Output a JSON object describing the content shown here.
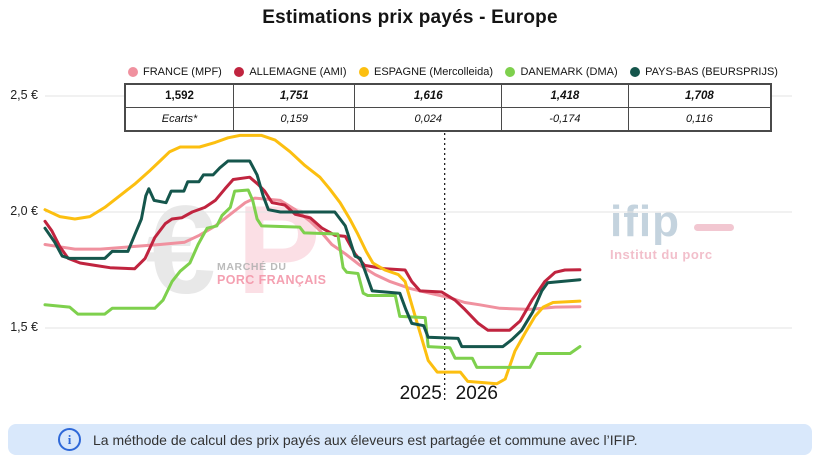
{
  "title": "Estimations prix payés - Europe",
  "table": {
    "rows": [
      [
        "1,592",
        "1,751",
        "1,616",
        "1,418",
        "1,708"
      ],
      [
        "Ecarts*",
        "0,159",
        "0,024",
        "-0,174",
        "0,116"
      ]
    ]
  },
  "watermarks": {
    "mpf_euro": "€",
    "mpf_p": "P",
    "mpf_line1": "MARCHÉ DU",
    "mpf_line2": "PORC FRANÇAIS",
    "ifip_name": "ifip",
    "ifip_sub": "Institut du porc"
  },
  "footer": {
    "info_text": "La méthode de calcul des prix payés aux éleveurs est partagée et commune avec l’IFIP."
  },
  "colors": {
    "grid": "#e3e3e3",
    "divider": "#222222",
    "banner_bg": "#d9e8fb",
    "banner_icon": "#2e68d8"
  },
  "chart_data": {
    "type": "line",
    "title": "Estimations prix payés - Europe",
    "ylabel": "€",
    "ylim": [
      1.2,
      2.55
    ],
    "grid": "horizontal",
    "legend_position": "top",
    "yticks": [
      {
        "label": "2,5 €",
        "value": 2.5
      },
      {
        "label": "2,0 €",
        "value": 2.0
      },
      {
        "label": "1,5 €",
        "value": 1.5
      }
    ],
    "x_axis": {
      "divider_x": 0.535,
      "labels": [
        {
          "text": "2025",
          "x": 0.503
        },
        {
          "text": "2026",
          "x": 0.578
        }
      ]
    },
    "series": [
      {
        "name": "FRANCE (MPF)",
        "color": "#f0919f",
        "current": 1.592,
        "ecart": null,
        "points": [
          [
            0.0,
            1.86
          ],
          [
            0.02,
            1.85
          ],
          [
            0.04,
            1.84
          ],
          [
            0.074,
            1.84
          ],
          [
            0.114,
            1.85
          ],
          [
            0.154,
            1.86
          ],
          [
            0.187,
            1.87
          ],
          [
            0.207,
            1.9
          ],
          [
            0.228,
            1.94
          ],
          [
            0.248,
            1.99
          ],
          [
            0.268,
            2.04
          ],
          [
            0.281,
            2.06
          ],
          [
            0.315,
            2.05
          ],
          [
            0.335,
            2.01
          ],
          [
            0.355,
            1.96
          ],
          [
            0.368,
            1.92
          ],
          [
            0.384,
            1.86
          ],
          [
            0.402,
            1.82
          ],
          [
            0.422,
            1.77
          ],
          [
            0.442,
            1.73
          ],
          [
            0.462,
            1.7
          ],
          [
            0.489,
            1.67
          ],
          [
            0.515,
            1.65
          ],
          [
            0.542,
            1.63
          ],
          [
            0.562,
            1.61
          ],
          [
            0.582,
            1.6
          ],
          [
            0.609,
            1.585
          ],
          [
            0.649,
            1.58
          ],
          [
            0.683,
            1.59
          ],
          [
            0.716,
            1.592
          ]
        ]
      },
      {
        "name": "ALLEMAGNE (AMI)",
        "color": "#c0243f",
        "current": 1.751,
        "ecart": 0.159,
        "points": [
          [
            0.0,
            1.96
          ],
          [
            0.009,
            1.92
          ],
          [
            0.02,
            1.85
          ],
          [
            0.031,
            1.8
          ],
          [
            0.047,
            1.78
          ],
          [
            0.067,
            1.77
          ],
          [
            0.087,
            1.76
          ],
          [
            0.12,
            1.755
          ],
          [
            0.134,
            1.8
          ],
          [
            0.147,
            1.89
          ],
          [
            0.161,
            1.95
          ],
          [
            0.17,
            1.97
          ],
          [
            0.183,
            1.975
          ],
          [
            0.197,
            2.0
          ],
          [
            0.214,
            2.02
          ],
          [
            0.228,
            2.05
          ],
          [
            0.241,
            2.1
          ],
          [
            0.252,
            2.14
          ],
          [
            0.274,
            2.15
          ],
          [
            0.285,
            2.12
          ],
          [
            0.294,
            2.09
          ],
          [
            0.304,
            2.04
          ],
          [
            0.321,
            2.03
          ],
          [
            0.335,
            1.99
          ],
          [
            0.355,
            1.975
          ],
          [
            0.371,
            1.93
          ],
          [
            0.388,
            1.9
          ],
          [
            0.402,
            1.895
          ],
          [
            0.415,
            1.82
          ],
          [
            0.428,
            1.77
          ],
          [
            0.455,
            1.755
          ],
          [
            0.482,
            1.75
          ],
          [
            0.491,
            1.7
          ],
          [
            0.502,
            1.66
          ],
          [
            0.531,
            1.655
          ],
          [
            0.549,
            1.62
          ],
          [
            0.562,
            1.58
          ],
          [
            0.58,
            1.52
          ],
          [
            0.593,
            1.49
          ],
          [
            0.622,
            1.49
          ],
          [
            0.636,
            1.53
          ],
          [
            0.652,
            1.62
          ],
          [
            0.669,
            1.7
          ],
          [
            0.683,
            1.74
          ],
          [
            0.696,
            1.75
          ],
          [
            0.716,
            1.751
          ]
        ]
      },
      {
        "name": "ESPAGNE (Mercolleida)",
        "color": "#fcbf10",
        "current": 1.616,
        "ecart": 0.024,
        "points": [
          [
            0.0,
            2.01
          ],
          [
            0.02,
            1.98
          ],
          [
            0.04,
            1.97
          ],
          [
            0.06,
            1.98
          ],
          [
            0.08,
            2.02
          ],
          [
            0.1,
            2.07
          ],
          [
            0.12,
            2.12
          ],
          [
            0.141,
            2.18
          ],
          [
            0.154,
            2.22
          ],
          [
            0.167,
            2.26
          ],
          [
            0.181,
            2.28
          ],
          [
            0.207,
            2.28
          ],
          [
            0.228,
            2.3
          ],
          [
            0.245,
            2.32
          ],
          [
            0.261,
            2.33
          ],
          [
            0.29,
            2.33
          ],
          [
            0.308,
            2.31
          ],
          [
            0.328,
            2.26
          ],
          [
            0.348,
            2.2
          ],
          [
            0.368,
            2.15
          ],
          [
            0.381,
            2.1
          ],
          [
            0.395,
            2.04
          ],
          [
            0.408,
            1.97
          ],
          [
            0.418,
            1.91
          ],
          [
            0.43,
            1.83
          ],
          [
            0.439,
            1.78
          ],
          [
            0.455,
            1.75
          ],
          [
            0.473,
            1.73
          ],
          [
            0.482,
            1.7
          ],
          [
            0.491,
            1.6
          ],
          [
            0.502,
            1.48
          ],
          [
            0.513,
            1.36
          ],
          [
            0.525,
            1.31
          ],
          [
            0.556,
            1.31
          ],
          [
            0.566,
            1.27
          ],
          [
            0.605,
            1.26
          ],
          [
            0.616,
            1.28
          ],
          [
            0.629,
            1.4
          ],
          [
            0.643,
            1.48
          ],
          [
            0.656,
            1.55
          ],
          [
            0.667,
            1.59
          ],
          [
            0.68,
            1.61
          ],
          [
            0.716,
            1.616
          ]
        ]
      },
      {
        "name": "DANEMARK (DMA)",
        "color": "#7ed04d",
        "current": 1.418,
        "ecart": -0.174,
        "points": [
          [
            0.0,
            1.6
          ],
          [
            0.033,
            1.59
          ],
          [
            0.044,
            1.56
          ],
          [
            0.08,
            1.56
          ],
          [
            0.09,
            1.585
          ],
          [
            0.147,
            1.585
          ],
          [
            0.158,
            1.62
          ],
          [
            0.17,
            1.7
          ],
          [
            0.181,
            1.745
          ],
          [
            0.194,
            1.78
          ],
          [
            0.205,
            1.86
          ],
          [
            0.217,
            1.93
          ],
          [
            0.23,
            1.94
          ],
          [
            0.237,
            1.985
          ],
          [
            0.248,
            2.02
          ],
          [
            0.254,
            2.09
          ],
          [
            0.272,
            2.095
          ],
          [
            0.278,
            2.05
          ],
          [
            0.284,
            1.97
          ],
          [
            0.29,
            1.94
          ],
          [
            0.341,
            1.935
          ],
          [
            0.347,
            1.91
          ],
          [
            0.392,
            1.905
          ],
          [
            0.399,
            1.76
          ],
          [
            0.404,
            1.74
          ],
          [
            0.419,
            1.735
          ],
          [
            0.426,
            1.65
          ],
          [
            0.432,
            1.64
          ],
          [
            0.469,
            1.64
          ],
          [
            0.475,
            1.55
          ],
          [
            0.509,
            1.545
          ],
          [
            0.513,
            1.42
          ],
          [
            0.542,
            1.415
          ],
          [
            0.549,
            1.37
          ],
          [
            0.572,
            1.37
          ],
          [
            0.578,
            1.33
          ],
          [
            0.649,
            1.33
          ],
          [
            0.659,
            1.39
          ],
          [
            0.703,
            1.39
          ],
          [
            0.716,
            1.42
          ]
        ]
      },
      {
        "name": "PAYS-BAS (BEURSPRIJS)",
        "color": "#15564c",
        "current": 1.708,
        "ecart": 0.116,
        "points": [
          [
            0.0,
            1.93
          ],
          [
            0.013,
            1.87
          ],
          [
            0.023,
            1.81
          ],
          [
            0.033,
            1.8
          ],
          [
            0.08,
            1.8
          ],
          [
            0.09,
            1.83
          ],
          [
            0.111,
            1.83
          ],
          [
            0.12,
            1.9
          ],
          [
            0.129,
            1.97
          ],
          [
            0.135,
            2.07
          ],
          [
            0.139,
            2.1
          ],
          [
            0.146,
            2.05
          ],
          [
            0.162,
            2.04
          ],
          [
            0.169,
            2.09
          ],
          [
            0.186,
            2.09
          ],
          [
            0.191,
            2.13
          ],
          [
            0.206,
            2.13
          ],
          [
            0.212,
            2.16
          ],
          [
            0.225,
            2.16
          ],
          [
            0.234,
            2.19
          ],
          [
            0.245,
            2.22
          ],
          [
            0.274,
            2.22
          ],
          [
            0.284,
            2.16
          ],
          [
            0.292,
            2.07
          ],
          [
            0.299,
            2.01
          ],
          [
            0.315,
            2.0
          ],
          [
            0.388,
            2.0
          ],
          [
            0.402,
            1.94
          ],
          [
            0.415,
            1.81
          ],
          [
            0.422,
            1.8
          ],
          [
            0.428,
            1.75
          ],
          [
            0.438,
            1.66
          ],
          [
            0.475,
            1.65
          ],
          [
            0.483,
            1.58
          ],
          [
            0.491,
            1.52
          ],
          [
            0.507,
            1.51
          ],
          [
            0.513,
            1.46
          ],
          [
            0.553,
            1.455
          ],
          [
            0.558,
            1.42
          ],
          [
            0.613,
            1.42
          ],
          [
            0.625,
            1.45
          ],
          [
            0.638,
            1.49
          ],
          [
            0.653,
            1.57
          ],
          [
            0.665,
            1.66
          ],
          [
            0.673,
            1.695
          ],
          [
            0.689,
            1.7
          ],
          [
            0.716,
            1.708
          ]
        ]
      }
    ]
  }
}
